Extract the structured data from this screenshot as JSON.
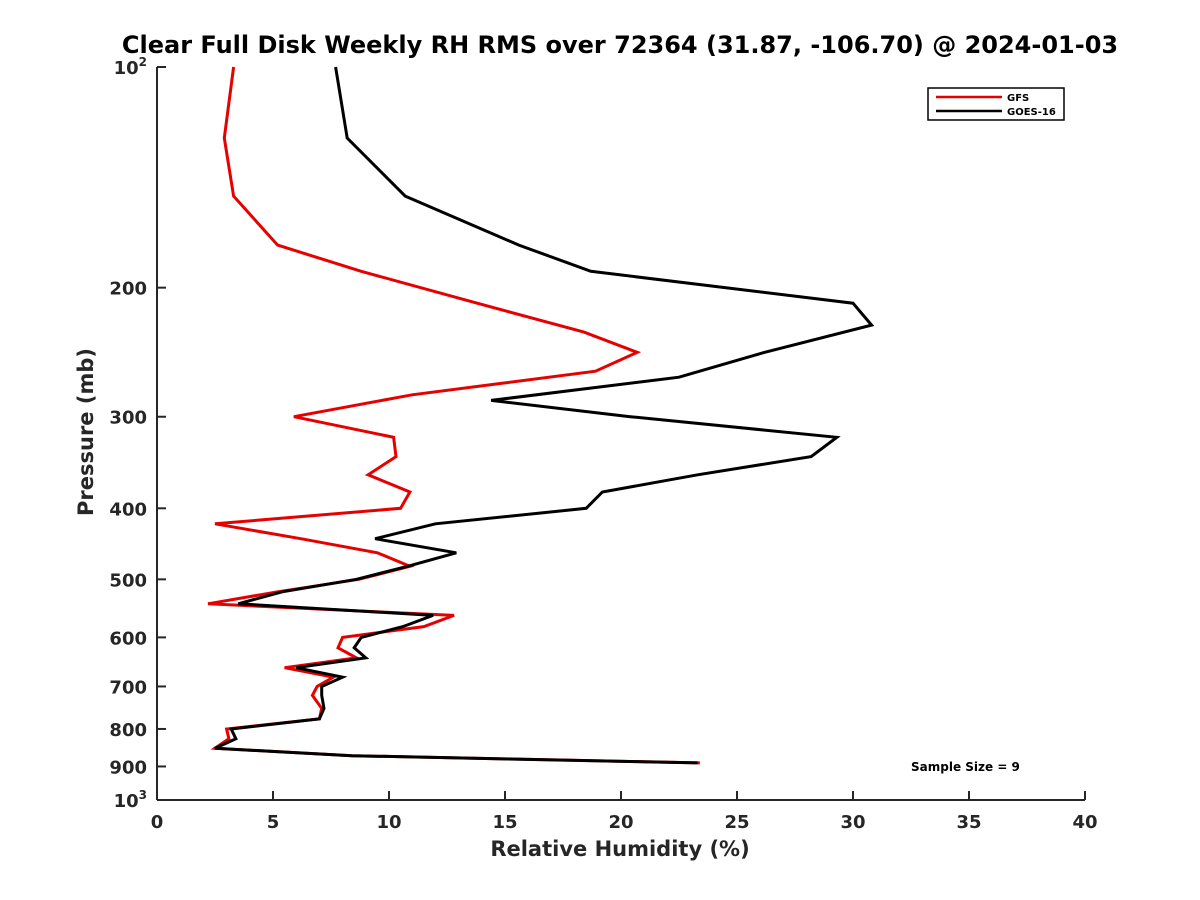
{
  "chart_data": {
    "type": "line",
    "title": "Clear Full Disk Weekly RH RMS over 72364 (31.87, -106.70) @ 2024-01-03",
    "xlabel": "Relative Humidity (%)",
    "ylabel": "Pressure (mb)",
    "xlim": [
      0,
      40
    ],
    "ylim": [
      100,
      1000
    ],
    "y_scale": "log",
    "y_reversed": true,
    "grid": false,
    "legend_position": "top-right",
    "x_ticks": [
      0,
      5,
      10,
      15,
      20,
      25,
      30,
      35,
      40
    ],
    "x_tick_labels": [
      "0",
      "5",
      "10",
      "15",
      "20",
      "25",
      "30",
      "35",
      "40"
    ],
    "y_ticks": [
      {
        "value": 100,
        "base": "10",
        "sup": "2"
      },
      {
        "value": 200,
        "base": "200",
        "sup": ""
      },
      {
        "value": 300,
        "base": "300",
        "sup": ""
      },
      {
        "value": 400,
        "base": "400",
        "sup": ""
      },
      {
        "value": 500,
        "base": "500",
        "sup": ""
      },
      {
        "value": 600,
        "base": "600",
        "sup": ""
      },
      {
        "value": 700,
        "base": "700",
        "sup": ""
      },
      {
        "value": 800,
        "base": "800",
        "sup": ""
      },
      {
        "value": 900,
        "base": "900",
        "sup": ""
      },
      {
        "value": 1000,
        "base": "10",
        "sup": "3"
      }
    ],
    "annotations": [
      {
        "text": "Sample Size = 9",
        "x": 33.1,
        "y": 900
      }
    ],
    "series": [
      {
        "name": "GFS",
        "color": "#e60000",
        "x": [
          3.3,
          2.9,
          3.3,
          5.2,
          8.8,
          13.8,
          18.4,
          20.7,
          18.9,
          11.0,
          5.9,
          10.2,
          10.3,
          9.1,
          10.9,
          10.5,
          2.5,
          6.2,
          9.5,
          10.9,
          8.7,
          5.2,
          2.2,
          12.8,
          11.5,
          8.0,
          7.8,
          8.6,
          5.5,
          7.6,
          6.9,
          6.7,
          7.1,
          7.0,
          3.0,
          3.1,
          2.5,
          8.4,
          23.4
        ],
        "y": [
          100,
          125,
          150,
          175,
          190,
          210,
          230,
          245,
          260,
          280,
          300,
          320,
          340,
          360,
          380,
          400,
          420,
          440,
          460,
          480,
          500,
          520,
          540,
          560,
          580,
          600,
          620,
          640,
          660,
          680,
          700,
          720,
          750,
          775,
          800,
          825,
          850,
          870,
          890
        ]
      },
      {
        "name": "GOES-16",
        "color": "#000000",
        "x": [
          7.7,
          8.2,
          10.7,
          15.6,
          18.7,
          30.0,
          30.8,
          26.2,
          22.5,
          14.4,
          20.4,
          29.3,
          28.2,
          23.3,
          19.2,
          18.5,
          12.0,
          9.4,
          12.9,
          10.8,
          8.6,
          5.4,
          3.5,
          11.9,
          10.6,
          8.8,
          8.5,
          9.0,
          6.0,
          8.0,
          7.1,
          7.1,
          7.2,
          7.0,
          3.2,
          3.4,
          2.5,
          8.4,
          23.3
        ],
        "y": [
          100,
          125,
          150,
          175,
          190,
          210,
          225,
          245,
          265,
          285,
          300,
          320,
          340,
          360,
          380,
          400,
          420,
          440,
          460,
          480,
          500,
          520,
          540,
          560,
          580,
          600,
          620,
          640,
          660,
          680,
          700,
          720,
          750,
          775,
          800,
          825,
          850,
          870,
          890
        ]
      }
    ]
  }
}
